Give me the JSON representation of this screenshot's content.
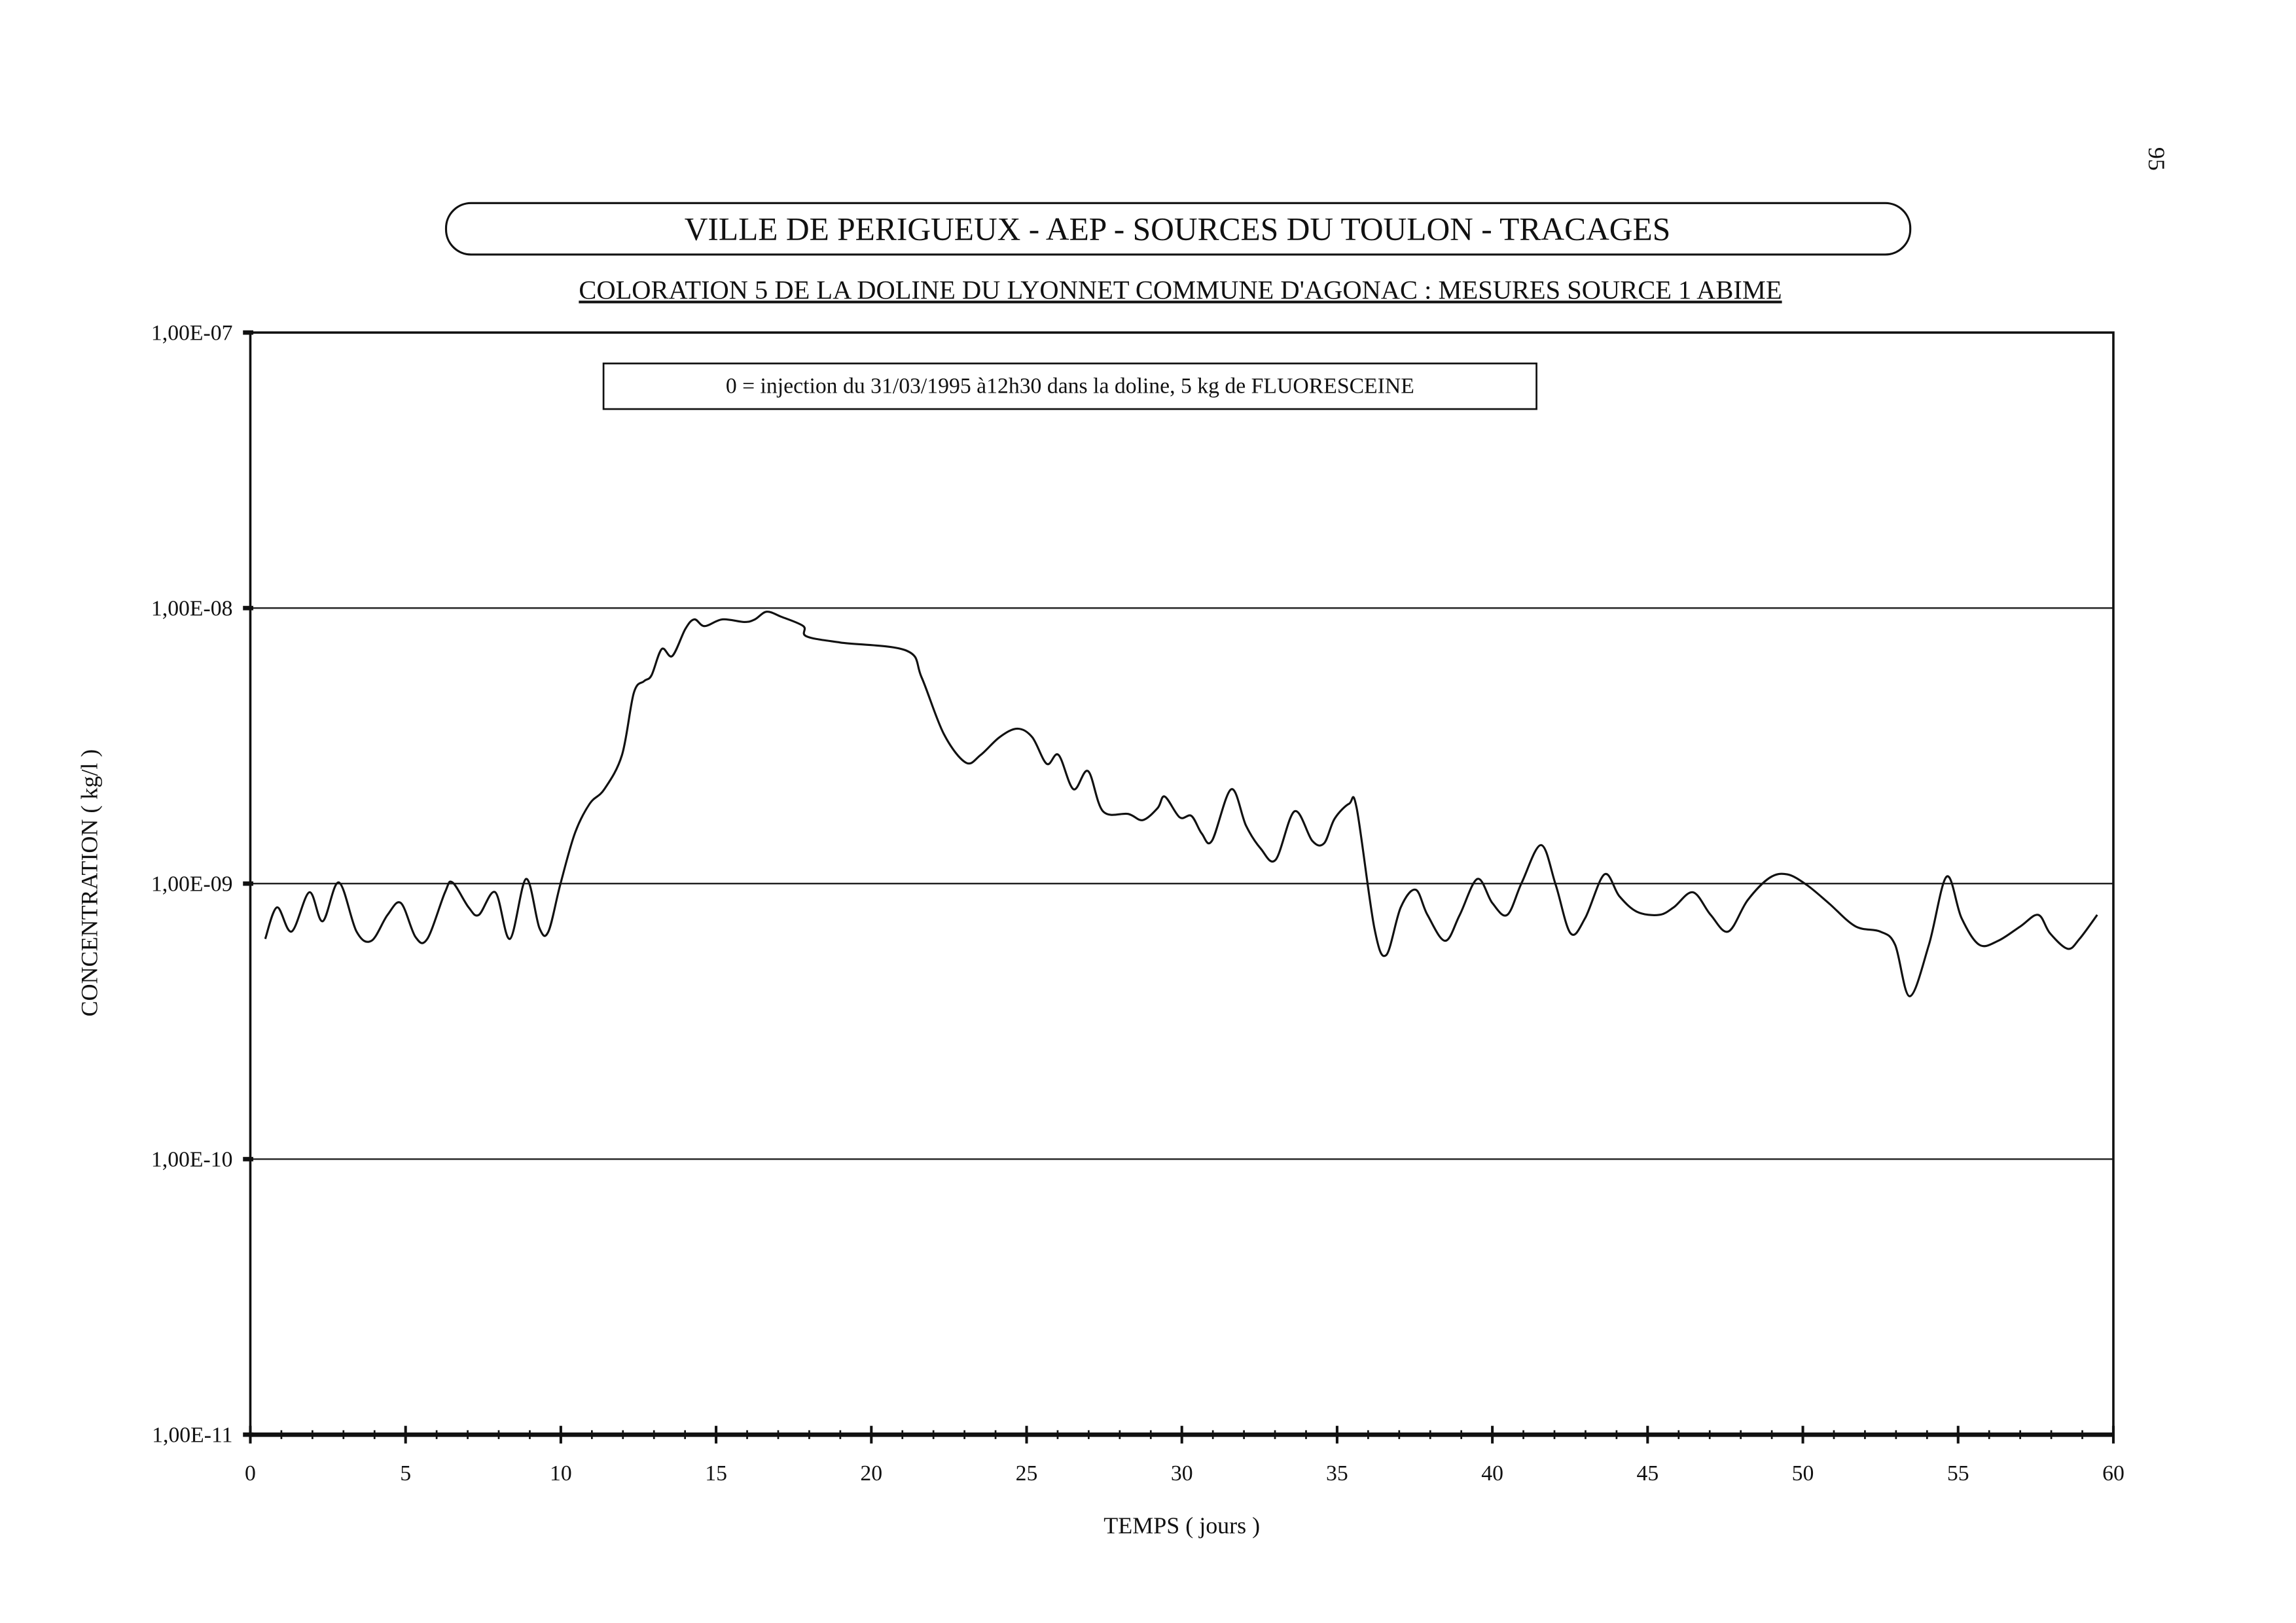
{
  "page_number": "95",
  "chart_data": {
    "type": "line",
    "title": "VILLE DE PERIGUEUX - AEP - SOURCES DU TOULON - TRACAGES",
    "subtitle": "COLORATION 5 DE LA DOLINE DU LYONNET COMMUNE D'AGONAC : MESURES SOURCE 1 ABIME",
    "annotation": "0 = injection du 31/03/1995 à12h30 dans la doline, 5 kg de FLUORESCEINE",
    "xlabel": "TEMPS ( jours )",
    "ylabel": "CONCENTRATION ( kg/l )",
    "xlim": [
      0,
      60
    ],
    "ylim": [
      1e-11,
      1e-07
    ],
    "yscale": "log",
    "grid": "horizontal",
    "x_ticks": [
      "0",
      "5",
      "10",
      "15",
      "20",
      "25",
      "30",
      "35",
      "40",
      "45",
      "50",
      "55",
      "60"
    ],
    "y_ticks": [
      {
        "label": "1,00E-07",
        "value": 1e-07
      },
      {
        "label": "1,00E-08",
        "value": 1e-08
      },
      {
        "label": "1,00E-09",
        "value": 1e-09
      },
      {
        "label": "1,00E-10",
        "value": 1e-10
      },
      {
        "label": "1,00E-11",
        "value": 1e-11
      }
    ],
    "series": [
      {
        "name": "Source 1 Abime",
        "x": [
          0.48,
          0.86,
          1.33,
          1.9,
          2.33,
          2.85,
          3.42,
          3.9,
          4.42,
          4.85,
          5.32,
          5.7,
          6.27,
          6.51,
          7.03,
          7.36,
          7.89,
          8.36,
          8.88,
          9.31,
          9.6,
          9.98,
          10.45,
          10.93,
          11.4,
          11.97,
          12.35,
          12.68,
          12.92,
          13.25,
          13.59,
          14.01,
          14.3,
          14.63,
          15.2,
          15.91,
          16.25,
          16.63,
          17.1,
          17.81,
          17.91,
          19.0,
          21.14,
          21.62,
          22.33,
          23.04,
          23.52,
          24.13,
          24.7,
          25.18,
          25.65,
          26.03,
          26.51,
          26.98,
          27.46,
          28.27,
          28.74,
          29.22,
          29.45,
          29.93,
          30.31,
          30.64,
          30.97,
          31.59,
          32.07,
          32.54,
          33.02,
          33.63,
          34.2,
          34.58,
          34.92,
          35.39,
          35.63,
          36.2,
          36.58,
          37.05,
          37.53,
          37.91,
          38.48,
          38.95,
          39.52,
          40.0,
          40.48,
          40.95,
          41.57,
          42.04,
          42.52,
          42.99,
          43.61,
          44.09,
          44.66,
          45.37,
          45.84,
          46.46,
          47.03,
          47.6,
          48.22,
          48.93,
          49.5,
          50.12,
          50.83,
          51.69,
          52.49,
          52.97,
          53.44,
          54.06,
          54.63,
          55.11,
          55.68,
          56.29,
          57.01,
          57.58,
          57.96,
          58.53,
          58.91,
          59.48
        ],
        "y": [
          6.3e-10,
          8.2e-10,
          6.7e-10,
          9.3e-10,
          7.3e-10,
          1.01e-09,
          6.7e-10,
          6.2e-10,
          7.7e-10,
          8.5e-10,
          6.4e-10,
          6.3e-10,
          9.3e-10,
          1.01e-09,
          8.2e-10,
          7.7e-10,
          9.3e-10,
          6.3e-10,
          1.04e-09,
          6.9e-10,
          6.7e-10,
          9.9e-10,
          1.52e-09,
          1.95e-09,
          2.2e-09,
          2.93e-09,
          4.92e-09,
          5.43e-09,
          5.7e-09,
          7.1e-09,
          6.7e-09,
          8.4e-09,
          9.1e-09,
          8.6e-09,
          9.1e-09,
          8.9e-09,
          9.1e-09,
          9.7e-09,
          9.3e-09,
          8.6e-09,
          7.9e-09,
          7.5e-09,
          7e-09,
          5.6e-09,
          3.5e-09,
          2.75e-09,
          2.93e-09,
          3.4e-09,
          3.65e-09,
          3.4e-09,
          2.72e-09,
          2.93e-09,
          2.2e-09,
          2.56e-09,
          1.83e-09,
          1.79e-09,
          1.7e-09,
          1.88e-09,
          2.07e-09,
          1.74e-09,
          1.76e-09,
          1.52e-09,
          1.43e-09,
          2.2e-09,
          1.62e-09,
          1.34e-09,
          1.22e-09,
          1.83e-09,
          1.43e-09,
          1.4e-09,
          1.72e-09,
          1.95e-09,
          1.88e-09,
          6.9e-10,
          5.5e-10,
          8.2e-10,
          9.5e-10,
          7.7e-10,
          6.2e-10,
          7.7e-10,
          1.04e-09,
          8.5e-10,
          7.7e-10,
          1.01e-09,
          1.38e-09,
          9.9e-10,
          6.6e-10,
          7.5e-10,
          1.08e-09,
          9e-10,
          7.9e-10,
          7.7e-10,
          8.2e-10,
          9.3e-10,
          7.7e-10,
          6.7e-10,
          8.7e-10,
          1.05e-09,
          1.08e-09,
          9.9e-10,
          8.5e-10,
          7e-10,
          6.7e-10,
          6e-10,
          3.9e-10,
          6e-10,
          1.06e-09,
          7.5e-10,
          6e-10,
          6.2e-10,
          7e-10,
          7.7e-10,
          6.6e-10,
          5.8e-10,
          6.3e-10,
          7.7e-10
        ],
        "color": "#111111"
      }
    ]
  }
}
